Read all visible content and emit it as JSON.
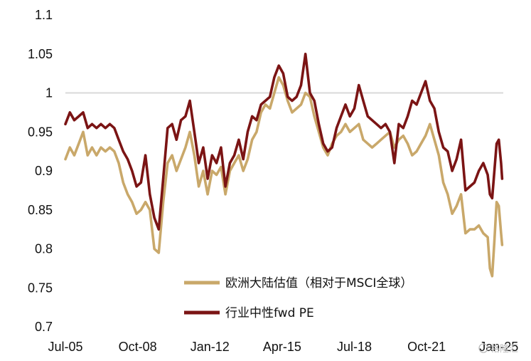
{
  "chart_data": {
    "type": "line",
    "title": "",
    "xlabel": "",
    "ylabel": "",
    "xlim": [
      2005.5,
      2025.2
    ],
    "ylim": [
      0.7,
      1.1
    ],
    "y_ticks": [
      "0.7",
      "0.75",
      "0.8",
      "0.85",
      "0.9",
      "0.95",
      "1",
      "1.05",
      "1.1"
    ],
    "x_ticks": [
      {
        "label": "Jul-05",
        "value": 2005.5
      },
      {
        "label": "Oct-08",
        "value": 2008.75
      },
      {
        "label": "Jan-12",
        "value": 2012.0
      },
      {
        "label": "Apr-15",
        "value": 2015.25
      },
      {
        "label": "Jul-18",
        "value": 2018.5
      },
      {
        "label": "Oct-21",
        "value": 2021.75
      },
      {
        "label": "Jan-25",
        "value": 2025.0
      }
    ],
    "reference_line": 1.0,
    "grid": false,
    "legend_position": "bottom-right",
    "series": [
      {
        "name": "欧洲大陆估值（相对于MSCI全球）",
        "color": "#C9A86A",
        "points": [
          [
            2005.5,
            0.915
          ],
          [
            2005.7,
            0.93
          ],
          [
            2005.9,
            0.92
          ],
          [
            2006.1,
            0.935
          ],
          [
            2006.3,
            0.95
          ],
          [
            2006.5,
            0.92
          ],
          [
            2006.7,
            0.93
          ],
          [
            2006.9,
            0.92
          ],
          [
            2007.1,
            0.93
          ],
          [
            2007.3,
            0.925
          ],
          [
            2007.5,
            0.93
          ],
          [
            2007.7,
            0.925
          ],
          [
            2007.9,
            0.91
          ],
          [
            2008.1,
            0.885
          ],
          [
            2008.3,
            0.87
          ],
          [
            2008.5,
            0.86
          ],
          [
            2008.7,
            0.845
          ],
          [
            2008.9,
            0.85
          ],
          [
            2009.1,
            0.86
          ],
          [
            2009.3,
            0.85
          ],
          [
            2009.5,
            0.8
          ],
          [
            2009.7,
            0.795
          ],
          [
            2009.9,
            0.86
          ],
          [
            2010.1,
            0.91
          ],
          [
            2010.3,
            0.92
          ],
          [
            2010.5,
            0.9
          ],
          [
            2010.7,
            0.915
          ],
          [
            2010.9,
            0.93
          ],
          [
            2011.1,
            0.95
          ],
          [
            2011.3,
            0.92
          ],
          [
            2011.5,
            0.88
          ],
          [
            2011.7,
            0.9
          ],
          [
            2011.9,
            0.87
          ],
          [
            2012.1,
            0.9
          ],
          [
            2012.3,
            0.895
          ],
          [
            2012.5,
            0.905
          ],
          [
            2012.7,
            0.87
          ],
          [
            2012.9,
            0.9
          ],
          [
            2013.1,
            0.91
          ],
          [
            2013.3,
            0.92
          ],
          [
            2013.5,
            0.9
          ],
          [
            2013.7,
            0.915
          ],
          [
            2013.9,
            0.94
          ],
          [
            2014.1,
            0.95
          ],
          [
            2014.3,
            0.975
          ],
          [
            2014.5,
            0.985
          ],
          [
            2014.7,
            0.98
          ],
          [
            2014.9,
            1.0
          ],
          [
            2015.1,
            1.02
          ],
          [
            2015.3,
            1.01
          ],
          [
            2015.5,
            0.99
          ],
          [
            2015.7,
            0.975
          ],
          [
            2015.9,
            0.98
          ],
          [
            2016.1,
            0.985
          ],
          [
            2016.3,
            1.0
          ],
          [
            2016.5,
            0.995
          ],
          [
            2016.7,
            0.97
          ],
          [
            2016.9,
            0.95
          ],
          [
            2017.1,
            0.93
          ],
          [
            2017.3,
            0.92
          ],
          [
            2017.5,
            0.935
          ],
          [
            2017.7,
            0.945
          ],
          [
            2017.9,
            0.95
          ],
          [
            2018.1,
            0.96
          ],
          [
            2018.3,
            0.95
          ],
          [
            2018.5,
            0.955
          ],
          [
            2018.7,
            0.96
          ],
          [
            2018.9,
            0.94
          ],
          [
            2019.1,
            0.935
          ],
          [
            2019.3,
            0.93
          ],
          [
            2019.5,
            0.935
          ],
          [
            2019.7,
            0.94
          ],
          [
            2019.9,
            0.945
          ],
          [
            2020.1,
            0.95
          ],
          [
            2020.3,
            0.93
          ],
          [
            2020.5,
            0.94
          ],
          [
            2020.7,
            0.945
          ],
          [
            2020.9,
            0.935
          ],
          [
            2021.1,
            0.92
          ],
          [
            2021.3,
            0.925
          ],
          [
            2021.5,
            0.935
          ],
          [
            2021.7,
            0.945
          ],
          [
            2021.9,
            0.96
          ],
          [
            2022.1,
            0.94
          ],
          [
            2022.3,
            0.92
          ],
          [
            2022.5,
            0.885
          ],
          [
            2022.7,
            0.87
          ],
          [
            2022.9,
            0.845
          ],
          [
            2023.1,
            0.855
          ],
          [
            2023.3,
            0.87
          ],
          [
            2023.5,
            0.82
          ],
          [
            2023.7,
            0.825
          ],
          [
            2023.9,
            0.825
          ],
          [
            2024.1,
            0.83
          ],
          [
            2024.3,
            0.82
          ],
          [
            2024.5,
            0.815
          ],
          [
            2024.6,
            0.775
          ],
          [
            2024.7,
            0.765
          ],
          [
            2024.8,
            0.81
          ],
          [
            2024.9,
            0.86
          ],
          [
            2025.0,
            0.855
          ],
          [
            2025.1,
            0.82
          ],
          [
            2025.15,
            0.805
          ]
        ]
      },
      {
        "name": "行业中性fwd PE",
        "color": "#7B1414",
        "points": [
          [
            2005.5,
            0.96
          ],
          [
            2005.7,
            0.975
          ],
          [
            2005.9,
            0.965
          ],
          [
            2006.1,
            0.97
          ],
          [
            2006.3,
            0.975
          ],
          [
            2006.5,
            0.955
          ],
          [
            2006.7,
            0.96
          ],
          [
            2006.9,
            0.955
          ],
          [
            2007.1,
            0.96
          ],
          [
            2007.3,
            0.955
          ],
          [
            2007.5,
            0.96
          ],
          [
            2007.7,
            0.955
          ],
          [
            2007.9,
            0.94
          ],
          [
            2008.1,
            0.925
          ],
          [
            2008.3,
            0.915
          ],
          [
            2008.5,
            0.9
          ],
          [
            2008.7,
            0.88
          ],
          [
            2008.9,
            0.885
          ],
          [
            2009.1,
            0.92
          ],
          [
            2009.3,
            0.87
          ],
          [
            2009.5,
            0.84
          ],
          [
            2009.7,
            0.825
          ],
          [
            2009.9,
            0.89
          ],
          [
            2010.1,
            0.955
          ],
          [
            2010.3,
            0.96
          ],
          [
            2010.5,
            0.94
          ],
          [
            2010.7,
            0.965
          ],
          [
            2010.9,
            0.97
          ],
          [
            2011.1,
            0.99
          ],
          [
            2011.3,
            0.95
          ],
          [
            2011.5,
            0.91
          ],
          [
            2011.7,
            0.93
          ],
          [
            2011.9,
            0.89
          ],
          [
            2012.1,
            0.92
          ],
          [
            2012.3,
            0.91
          ],
          [
            2012.5,
            0.93
          ],
          [
            2012.7,
            0.88
          ],
          [
            2012.9,
            0.91
          ],
          [
            2013.1,
            0.92
          ],
          [
            2013.3,
            0.94
          ],
          [
            2013.5,
            0.915
          ],
          [
            2013.7,
            0.95
          ],
          [
            2013.9,
            0.97
          ],
          [
            2014.1,
            0.965
          ],
          [
            2014.3,
            0.985
          ],
          [
            2014.5,
            0.99
          ],
          [
            2014.7,
            0.995
          ],
          [
            2014.9,
            1.02
          ],
          [
            2015.1,
            1.035
          ],
          [
            2015.3,
            1.025
          ],
          [
            2015.5,
            0.995
          ],
          [
            2015.7,
            0.99
          ],
          [
            2015.9,
            0.995
          ],
          [
            2016.1,
            1.01
          ],
          [
            2016.3,
            1.05
          ],
          [
            2016.5,
            1.0
          ],
          [
            2016.7,
            0.99
          ],
          [
            2016.9,
            0.96
          ],
          [
            2017.1,
            0.935
          ],
          [
            2017.3,
            0.925
          ],
          [
            2017.5,
            0.93
          ],
          [
            2017.7,
            0.955
          ],
          [
            2017.9,
            0.97
          ],
          [
            2018.1,
            0.985
          ],
          [
            2018.3,
            0.97
          ],
          [
            2018.5,
            0.98
          ],
          [
            2018.7,
            1.01
          ],
          [
            2018.9,
            0.99
          ],
          [
            2019.1,
            0.97
          ],
          [
            2019.3,
            0.965
          ],
          [
            2019.5,
            0.96
          ],
          [
            2019.7,
            0.955
          ],
          [
            2019.9,
            0.96
          ],
          [
            2020.1,
            0.95
          ],
          [
            2020.3,
            0.91
          ],
          [
            2020.5,
            0.96
          ],
          [
            2020.7,
            0.955
          ],
          [
            2020.9,
            0.97
          ],
          [
            2021.1,
            0.99
          ],
          [
            2021.3,
            0.985
          ],
          [
            2021.5,
            1.0
          ],
          [
            2021.7,
            1.015
          ],
          [
            2021.9,
            0.99
          ],
          [
            2022.1,
            0.98
          ],
          [
            2022.3,
            0.95
          ],
          [
            2022.5,
            0.93
          ],
          [
            2022.7,
            0.925
          ],
          [
            2022.9,
            0.9
          ],
          [
            2023.1,
            0.915
          ],
          [
            2023.3,
            0.94
          ],
          [
            2023.5,
            0.875
          ],
          [
            2023.7,
            0.88
          ],
          [
            2023.9,
            0.885
          ],
          [
            2024.1,
            0.9
          ],
          [
            2024.3,
            0.91
          ],
          [
            2024.5,
            0.895
          ],
          [
            2024.6,
            0.87
          ],
          [
            2024.7,
            0.865
          ],
          [
            2024.8,
            0.9
          ],
          [
            2024.9,
            0.935
          ],
          [
            2025.0,
            0.94
          ],
          [
            2025.1,
            0.91
          ],
          [
            2025.15,
            0.89
          ]
        ]
      }
    ]
  },
  "watermark": "格隆汇",
  "watermark_icon": "lock-icon"
}
